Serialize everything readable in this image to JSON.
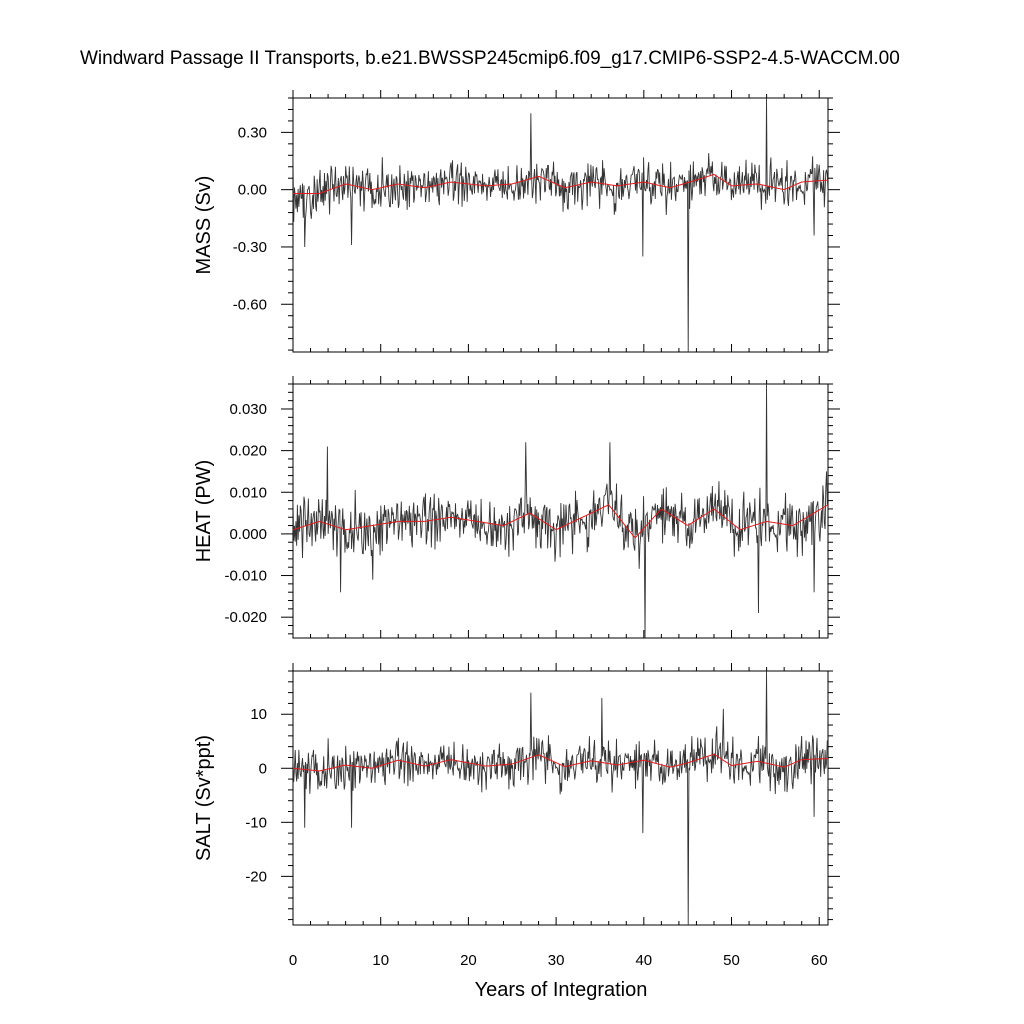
{
  "title": "Windward Passage II Transports, b.e21.BWSSP245cmip6.f09_g17.CMIP6-SSP2-4.5-WACCM.00",
  "x_axis": {
    "label": "Years of Integration",
    "range": [
      0,
      61
    ],
    "ticks": [
      0,
      10,
      20,
      30,
      40,
      50,
      60
    ]
  },
  "colors": {
    "raw": "#333333",
    "smooth": "#e41a1c",
    "frame": "#000000"
  },
  "chart_data": [
    {
      "type": "line",
      "ylabel": "MASS (Sv)",
      "ylim": [
        -0.85,
        0.48
      ],
      "yticks": [
        0.3,
        0.0,
        -0.3,
        -0.6
      ],
      "ytick_labels": [
        "0.30",
        "0.00",
        "-0.30",
        "-0.60"
      ],
      "amp": 0.095,
      "spikes": [
        [
          0.03,
          0.18
        ],
        [
          1.3,
          -0.3
        ],
        [
          6.7,
          -0.29
        ],
        [
          27.1,
          0.4
        ],
        [
          39.9,
          -0.35
        ],
        [
          45.1,
          -0.85
        ],
        [
          54.0,
          0.48
        ],
        [
          59.4,
          -0.24
        ]
      ],
      "smooth_anchors": [
        [
          0,
          -0.02
        ],
        [
          3,
          -0.02
        ],
        [
          6,
          0.03
        ],
        [
          9,
          0.0
        ],
        [
          12,
          0.03
        ],
        [
          15,
          0.01
        ],
        [
          18,
          0.04
        ],
        [
          22,
          0.02
        ],
        [
          25,
          0.03
        ],
        [
          28,
          0.07
        ],
        [
          31,
          0.01
        ],
        [
          34,
          0.04
        ],
        [
          37,
          0.02
        ],
        [
          40,
          0.04
        ],
        [
          43,
          0.01
        ],
        [
          46,
          0.05
        ],
        [
          48,
          0.08
        ],
        [
          50,
          0.02
        ],
        [
          53,
          0.03
        ],
        [
          56,
          0.0
        ],
        [
          58,
          0.04
        ],
        [
          61,
          0.05
        ]
      ]
    },
    {
      "type": "line",
      "ylabel": "HEAT (PW)",
      "ylim": [
        -0.025,
        0.036
      ],
      "yticks": [
        0.03,
        0.02,
        0.01,
        0.0,
        -0.01,
        -0.02
      ],
      "ytick_labels": [
        "0.030",
        "0.020",
        "0.010",
        "0.000",
        "-0.010",
        "-0.020"
      ],
      "amp": 0.0055,
      "spikes": [
        [
          3.9,
          0.021
        ],
        [
          5.4,
          -0.014
        ],
        [
          9.1,
          -0.011
        ],
        [
          26.5,
          0.022
        ],
        [
          36.1,
          0.022
        ],
        [
          40.1,
          -0.025
        ],
        [
          53.1,
          -0.019
        ],
        [
          54.0,
          0.036
        ],
        [
          59.4,
          -0.014
        ],
        [
          60.8,
          0.015
        ]
      ],
      "smooth_anchors": [
        [
          0,
          0.001
        ],
        [
          3,
          0.003
        ],
        [
          6,
          0.001
        ],
        [
          9,
          0.002
        ],
        [
          12,
          0.003
        ],
        [
          15,
          0.003
        ],
        [
          18,
          0.004
        ],
        [
          21,
          0.003
        ],
        [
          24,
          0.002
        ],
        [
          27,
          0.005
        ],
        [
          30,
          0.001
        ],
        [
          33,
          0.004
        ],
        [
          36,
          0.007
        ],
        [
          39,
          -0.001
        ],
        [
          42,
          0.006
        ],
        [
          45,
          0.002
        ],
        [
          48,
          0.006
        ],
        [
          51,
          0.001
        ],
        [
          54,
          0.003
        ],
        [
          57,
          0.002
        ],
        [
          61,
          0.007
        ]
      ]
    },
    {
      "type": "line",
      "ylabel": "SALT (Sv*ppt)",
      "ylim": [
        -29,
        18
      ],
      "yticks": [
        10,
        0,
        -10,
        -20
      ],
      "ytick_labels": [
        "10",
        "0",
        "-10",
        "-20"
      ],
      "amp": 3.4,
      "spikes": [
        [
          1.3,
          -11
        ],
        [
          6.7,
          -11
        ],
        [
          27.1,
          14
        ],
        [
          35.2,
          13
        ],
        [
          39.9,
          -12
        ],
        [
          45.1,
          -29
        ],
        [
          49.1,
          11
        ],
        [
          54.0,
          18
        ],
        [
          59.4,
          -9
        ]
      ],
      "smooth_anchors": [
        [
          0,
          0.0
        ],
        [
          3,
          -0.5
        ],
        [
          6,
          0.6
        ],
        [
          9,
          0.0
        ],
        [
          12,
          1.5
        ],
        [
          15,
          0.4
        ],
        [
          18,
          1.6
        ],
        [
          22,
          0.4
        ],
        [
          25,
          0.8
        ],
        [
          28,
          2.5
        ],
        [
          31,
          0.3
        ],
        [
          34,
          1.4
        ],
        [
          37,
          0.6
        ],
        [
          40,
          1.5
        ],
        [
          43,
          0.2
        ],
        [
          45,
          1.0
        ],
        [
          48,
          2.6
        ],
        [
          50,
          0.5
        ],
        [
          53,
          1.3
        ],
        [
          56,
          0.2
        ],
        [
          58,
          1.6
        ],
        [
          61,
          1.8
        ]
      ]
    }
  ]
}
